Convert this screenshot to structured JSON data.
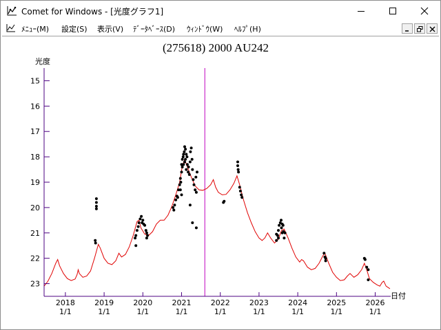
{
  "window": {
    "title": "Comet for Windows - [光度グラフ1]",
    "app_icon": "chart-app-icon",
    "controls": [
      "minimize-icon",
      "maximize-icon",
      "close-icon"
    ]
  },
  "menubar": {
    "items": [
      {
        "label": "ﾒﾆｭｰ(M)"
      },
      {
        "label": "設定(S)"
      },
      {
        "label": "表示(V)"
      },
      {
        "label": "ﾃﾞｰﾀﾍﾞｰｽ(D)"
      },
      {
        "label": "ｳｨﾝﾄﾞｳ(W)"
      },
      {
        "label": "ﾍﾙﾌﾟ(H)"
      }
    ],
    "doc_controls": [
      "doc-minimize-icon",
      "doc-restore-icon",
      "doc-close-icon"
    ]
  },
  "chart_data": {
    "type": "scatter",
    "title": "(275618) 2000 AU242",
    "ylabel": "光度",
    "xlabel": "日付",
    "ylim": [
      23.5,
      14.5
    ],
    "y_inverted": true,
    "y_ticks": [
      15,
      16,
      17,
      18,
      19,
      20,
      21,
      22,
      23
    ],
    "xlim": [
      2017.45,
      2026.4
    ],
    "x_ticks": [
      {
        "x": 2018,
        "label": "2018",
        "sub": "1/1"
      },
      {
        "x": 2019,
        "label": "2019",
        "sub": "1/1"
      },
      {
        "x": 2020,
        "label": "2020",
        "sub": "1/1"
      },
      {
        "x": 2021,
        "label": "2021",
        "sub": "1/1"
      },
      {
        "x": 2022,
        "label": "2022",
        "sub": "1/1"
      },
      {
        "x": 2023,
        "label": "2023",
        "sub": "1/1"
      },
      {
        "x": 2024,
        "label": "2024",
        "sub": "1/1"
      },
      {
        "x": 2025,
        "label": "2025",
        "sub": "1/1"
      },
      {
        "x": 2026,
        "label": "2026",
        "sub": "1/1"
      }
    ],
    "current_date_marker": 2021.6,
    "marker_color": "#c000c0",
    "axis_color": "#4b0082",
    "curve_color": "#e00000",
    "point_color": "#000000",
    "series": [
      {
        "kind": "prediction-curve",
        "points": [
          [
            2017.45,
            23.1
          ],
          [
            2017.55,
            22.9
          ],
          [
            2017.65,
            22.6
          ],
          [
            2017.75,
            22.2
          ],
          [
            2017.8,
            22.05
          ],
          [
            2017.85,
            22.3
          ],
          [
            2017.95,
            22.6
          ],
          [
            2018.05,
            22.8
          ],
          [
            2018.15,
            22.88
          ],
          [
            2018.25,
            22.82
          ],
          [
            2018.3,
            22.65
          ],
          [
            2018.33,
            22.45
          ],
          [
            2018.36,
            22.6
          ],
          [
            2018.45,
            22.75
          ],
          [
            2018.55,
            22.7
          ],
          [
            2018.65,
            22.5
          ],
          [
            2018.75,
            22.0
          ],
          [
            2018.85,
            21.45
          ],
          [
            2018.9,
            21.6
          ],
          [
            2019.0,
            22.0
          ],
          [
            2019.1,
            22.2
          ],
          [
            2019.2,
            22.25
          ],
          [
            2019.3,
            22.1
          ],
          [
            2019.38,
            21.8
          ],
          [
            2019.45,
            21.95
          ],
          [
            2019.55,
            21.85
          ],
          [
            2019.65,
            21.55
          ],
          [
            2019.75,
            21.1
          ],
          [
            2019.85,
            20.55
          ],
          [
            2019.9,
            20.5
          ],
          [
            2019.95,
            20.8
          ],
          [
            2020.05,
            21.05
          ],
          [
            2020.15,
            21.1
          ],
          [
            2020.25,
            20.95
          ],
          [
            2020.35,
            20.65
          ],
          [
            2020.45,
            20.5
          ],
          [
            2020.55,
            20.5
          ],
          [
            2020.65,
            20.3
          ],
          [
            2020.75,
            19.95
          ],
          [
            2020.85,
            19.5
          ],
          [
            2020.95,
            19.0
          ],
          [
            2021.02,
            18.35
          ],
          [
            2021.08,
            18.1
          ],
          [
            2021.15,
            18.4
          ],
          [
            2021.25,
            18.8
          ],
          [
            2021.35,
            19.15
          ],
          [
            2021.45,
            19.3
          ],
          [
            2021.55,
            19.32
          ],
          [
            2021.65,
            19.25
          ],
          [
            2021.75,
            19.1
          ],
          [
            2021.82,
            18.9
          ],
          [
            2021.88,
            19.2
          ],
          [
            2021.95,
            19.4
          ],
          [
            2022.05,
            19.5
          ],
          [
            2022.15,
            19.48
          ],
          [
            2022.25,
            19.3
          ],
          [
            2022.35,
            19.05
          ],
          [
            2022.43,
            18.75
          ],
          [
            2022.5,
            19.1
          ],
          [
            2022.6,
            19.7
          ],
          [
            2022.7,
            20.2
          ],
          [
            2022.8,
            20.6
          ],
          [
            2022.9,
            20.95
          ],
          [
            2023.0,
            21.2
          ],
          [
            2023.08,
            21.3
          ],
          [
            2023.15,
            21.2
          ],
          [
            2023.22,
            21.0
          ],
          [
            2023.3,
            21.2
          ],
          [
            2023.4,
            21.4
          ],
          [
            2023.5,
            21.25
          ],
          [
            2023.58,
            20.9
          ],
          [
            2023.65,
            20.85
          ],
          [
            2023.75,
            21.2
          ],
          [
            2023.85,
            21.6
          ],
          [
            2023.95,
            21.95
          ],
          [
            2024.05,
            22.15
          ],
          [
            2024.1,
            22.05
          ],
          [
            2024.15,
            22.1
          ],
          [
            2024.25,
            22.35
          ],
          [
            2024.35,
            22.45
          ],
          [
            2024.45,
            22.4
          ],
          [
            2024.55,
            22.2
          ],
          [
            2024.65,
            21.9
          ],
          [
            2024.7,
            21.8
          ],
          [
            2024.8,
            22.2
          ],
          [
            2024.9,
            22.55
          ],
          [
            2025.0,
            22.75
          ],
          [
            2025.1,
            22.88
          ],
          [
            2025.2,
            22.85
          ],
          [
            2025.28,
            22.7
          ],
          [
            2025.35,
            22.6
          ],
          [
            2025.45,
            22.75
          ],
          [
            2025.55,
            22.65
          ],
          [
            2025.65,
            22.45
          ],
          [
            2025.72,
            22.2
          ],
          [
            2025.78,
            22.45
          ],
          [
            2025.85,
            22.8
          ],
          [
            2025.95,
            22.95
          ],
          [
            2026.05,
            23.05
          ],
          [
            2026.12,
            23.1
          ],
          [
            2026.18,
            22.95
          ],
          [
            2026.22,
            22.9
          ],
          [
            2026.28,
            23.1
          ],
          [
            2026.38,
            23.2
          ]
        ]
      },
      {
        "kind": "observations",
        "points": [
          [
            2018.8,
            19.65
          ],
          [
            2018.8,
            19.8
          ],
          [
            2018.8,
            19.95
          ],
          [
            2018.8,
            20.05
          ],
          [
            2018.77,
            21.3
          ],
          [
            2018.78,
            21.4
          ],
          [
            2019.82,
            21.1
          ],
          [
            2019.85,
            20.9
          ],
          [
            2019.88,
            20.75
          ],
          [
            2019.9,
            20.6
          ],
          [
            2019.93,
            20.45
          ],
          [
            2019.96,
            20.35
          ],
          [
            2019.98,
            20.6
          ],
          [
            2020.0,
            20.5
          ],
          [
            2020.02,
            20.65
          ],
          [
            2020.05,
            20.7
          ],
          [
            2019.8,
            21.2
          ],
          [
            2019.82,
            21.5
          ],
          [
            2020.08,
            20.9
          ],
          [
            2020.1,
            21.0
          ],
          [
            2020.12,
            21.1
          ],
          [
            2020.1,
            21.2
          ],
          [
            2020.78,
            20.0
          ],
          [
            2020.8,
            20.1
          ],
          [
            2020.82,
            19.9
          ],
          [
            2020.85,
            19.7
          ],
          [
            2020.88,
            19.55
          ],
          [
            2020.9,
            19.6
          ],
          [
            2020.92,
            19.3
          ],
          [
            2020.95,
            19.1
          ],
          [
            2020.97,
            18.85
          ],
          [
            2020.98,
            19.0
          ],
          [
            2021.0,
            18.6
          ],
          [
            2021.0,
            18.3
          ],
          [
            2021.02,
            18.1
          ],
          [
            2021.02,
            18.4
          ],
          [
            2021.04,
            18.0
          ],
          [
            2021.05,
            17.9
          ],
          [
            2021.05,
            18.3
          ],
          [
            2021.07,
            17.8
          ],
          [
            2021.08,
            17.6
          ],
          [
            2021.08,
            18.2
          ],
          [
            2021.1,
            17.7
          ],
          [
            2021.1,
            18.1
          ],
          [
            2021.12,
            17.9
          ],
          [
            2021.12,
            18.5
          ],
          [
            2021.14,
            18.0
          ],
          [
            2021.15,
            18.3
          ],
          [
            2021.17,
            18.6
          ],
          [
            2021.18,
            18.4
          ],
          [
            2021.2,
            18.7
          ],
          [
            2021.22,
            18.2
          ],
          [
            2021.23,
            17.8
          ],
          [
            2021.25,
            17.65
          ],
          [
            2021.27,
            18.1
          ],
          [
            2021.28,
            18.5
          ],
          [
            2021.3,
            18.9
          ],
          [
            2021.32,
            19.1
          ],
          [
            2021.35,
            19.3
          ],
          [
            2021.37,
            18.8
          ],
          [
            2021.38,
            19.4
          ],
          [
            2021.22,
            19.9
          ],
          [
            2021.28,
            20.6
          ],
          [
            2021.38,
            20.8
          ],
          [
            2021.4,
            18.6
          ],
          [
            2020.97,
            19.3
          ],
          [
            2021.0,
            19.5
          ],
          [
            2022.08,
            19.8
          ],
          [
            2022.1,
            19.75
          ],
          [
            2022.45,
            18.2
          ],
          [
            2022.45,
            18.35
          ],
          [
            2022.46,
            18.5
          ],
          [
            2022.47,
            18.6
          ],
          [
            2022.5,
            19.2
          ],
          [
            2022.52,
            19.35
          ],
          [
            2022.54,
            19.5
          ],
          [
            2022.56,
            19.6
          ],
          [
            2023.45,
            21.3
          ],
          [
            2023.48,
            21.1
          ],
          [
            2023.5,
            20.9
          ],
          [
            2023.52,
            20.7
          ],
          [
            2023.55,
            20.6
          ],
          [
            2023.57,
            20.5
          ],
          [
            2023.58,
            20.8
          ],
          [
            2023.6,
            21.0
          ],
          [
            2023.62,
            20.7
          ],
          [
            2023.6,
            20.65
          ],
          [
            2023.63,
            20.95
          ],
          [
            2023.65,
            21.2
          ],
          [
            2023.67,
            21.0
          ],
          [
            2023.5,
            21.2
          ],
          [
            2023.45,
            21.05
          ],
          [
            2024.68,
            21.8
          ],
          [
            2024.7,
            21.95
          ],
          [
            2024.72,
            22.1
          ],
          [
            2024.72,
            22.0
          ],
          [
            2025.72,
            22.0
          ],
          [
            2025.74,
            22.05
          ],
          [
            2025.78,
            22.35
          ],
          [
            2025.82,
            22.45
          ],
          [
            2025.82,
            22.85
          ]
        ]
      }
    ]
  }
}
